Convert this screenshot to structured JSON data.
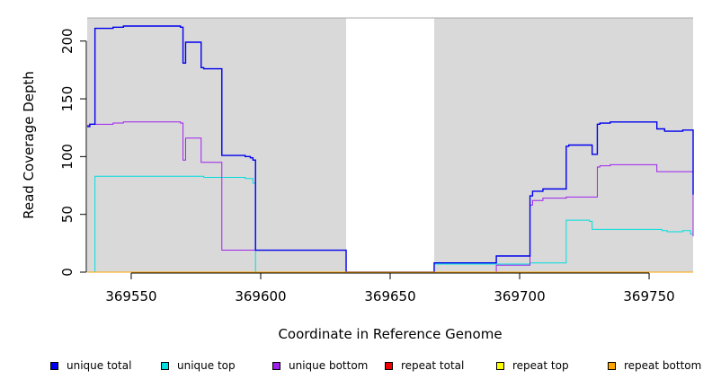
{
  "chart_data": {
    "type": "line",
    "title": "",
    "xlabel": "Coordinate in Reference Genome",
    "ylabel": "Read Coverage Depth",
    "xlim": [
      369533,
      369767
    ],
    "ylim": [
      0,
      220
    ],
    "x_ticks": [
      369550,
      369600,
      369650,
      369700,
      369750
    ],
    "y_ticks": [
      0,
      50,
      100,
      150,
      200
    ],
    "grid": false,
    "background_color": "#d9d9d9",
    "highlighted_regions": [
      {
        "x": [
          369533,
          369633
        ],
        "color": "#d9d9d9"
      },
      {
        "x": [
          369667,
          369767
        ],
        "color": "#d9d9d9"
      }
    ],
    "legend_position": "bottom",
    "series": [
      {
        "name": "unique total",
        "color": "#0000ee",
        "step": true,
        "points": [
          [
            369533,
            126
          ],
          [
            369534,
            128
          ],
          [
            369536,
            211
          ],
          [
            369543,
            212
          ],
          [
            369547,
            213
          ],
          [
            369569,
            212
          ],
          [
            369570,
            181
          ],
          [
            369571,
            199
          ],
          [
            369577,
            177
          ],
          [
            369578,
            176
          ],
          [
            369585,
            101
          ],
          [
            369594,
            100
          ],
          [
            369596,
            99
          ],
          [
            369597,
            97
          ],
          [
            369598,
            19
          ],
          [
            369633,
            0
          ],
          [
            369667,
            8
          ],
          [
            369691,
            14
          ],
          [
            369704,
            66
          ],
          [
            369705,
            70
          ],
          [
            369709,
            72
          ],
          [
            369718,
            109
          ],
          [
            369719,
            110
          ],
          [
            369728,
            102
          ],
          [
            369730,
            128
          ],
          [
            369731,
            129
          ],
          [
            369735,
            130
          ],
          [
            369753,
            124
          ],
          [
            369756,
            122
          ],
          [
            369763,
            123
          ],
          [
            369767,
            67
          ]
        ]
      },
      {
        "name": "unique top",
        "color": "#00dddd",
        "step": true,
        "points": [
          [
            369533,
            0
          ],
          [
            369536,
            83
          ],
          [
            369578,
            82
          ],
          [
            369594,
            81
          ],
          [
            369597,
            77
          ],
          [
            369598,
            0
          ],
          [
            369633,
            0
          ],
          [
            369667,
            7
          ],
          [
            369691,
            7
          ],
          [
            369704,
            8
          ],
          [
            369718,
            45
          ],
          [
            369727,
            44
          ],
          [
            369728,
            37
          ],
          [
            369755,
            36
          ],
          [
            369757,
            35
          ],
          [
            369763,
            36
          ],
          [
            369766,
            33
          ],
          [
            369767,
            34
          ]
        ]
      },
      {
        "name": "unique bottom",
        "color": "#a020f0",
        "step": true,
        "points": [
          [
            369533,
            127
          ],
          [
            369534,
            128
          ],
          [
            369543,
            129
          ],
          [
            369547,
            130
          ],
          [
            369569,
            129
          ],
          [
            369570,
            97
          ],
          [
            369571,
            116
          ],
          [
            369577,
            95
          ],
          [
            369585,
            19
          ],
          [
            369598,
            19
          ],
          [
            369633,
            0
          ],
          [
            369667,
            0
          ],
          [
            369691,
            6
          ],
          [
            369704,
            58
          ],
          [
            369705,
            62
          ],
          [
            369709,
            64
          ],
          [
            369718,
            65
          ],
          [
            369730,
            91
          ],
          [
            369731,
            92
          ],
          [
            369735,
            93
          ],
          [
            369753,
            87
          ],
          [
            369767,
            31
          ]
        ]
      },
      {
        "name": "repeat total",
        "color": "#ee0000",
        "step": true,
        "points": [
          [
            369533,
            0
          ],
          [
            369767,
            0
          ]
        ]
      },
      {
        "name": "repeat top",
        "color": "#ffff00",
        "step": true,
        "points": [
          [
            369533,
            0
          ],
          [
            369767,
            0
          ]
        ]
      },
      {
        "name": "repeat bottom",
        "color": "#ffa500",
        "step": true,
        "points": [
          [
            369533,
            0
          ],
          [
            369767,
            0
          ]
        ]
      }
    ]
  }
}
